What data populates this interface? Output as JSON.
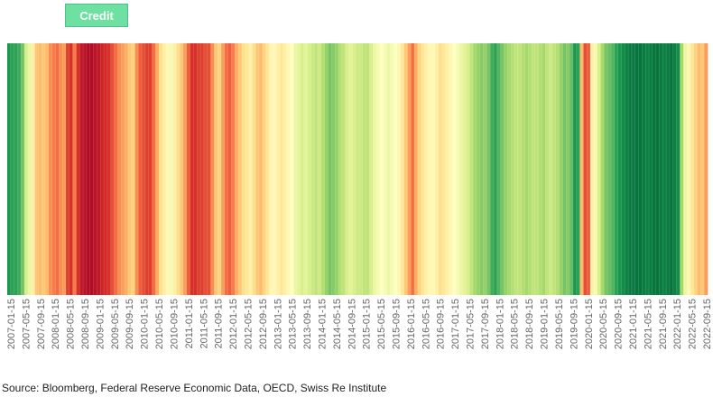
{
  "legend": {
    "label": "Credit",
    "color": "#6ee0a2"
  },
  "source": "Source: Bloomberg, Federal Reserve Economic Data, OECD, Swiss Re Institute",
  "chart_data": {
    "type": "heatmap",
    "title": "",
    "series_name": "Credit",
    "x_labels": [
      "2007-01-15",
      "2007-05-15",
      "2007-09-15",
      "2008-01-15",
      "2008-05-15",
      "2008-09-15",
      "2009-01-15",
      "2009-05-15",
      "2009-09-15",
      "2010-01-15",
      "2010-05-15",
      "2010-09-15",
      "2011-01-15",
      "2011-05-15",
      "2011-09-15",
      "2012-01-15",
      "2012-05-15",
      "2012-09-15",
      "2013-01-15",
      "2013-05-15",
      "2013-09-15",
      "2014-01-15",
      "2014-05-15",
      "2014-09-15",
      "2015-01-15",
      "2015-05-15",
      "2015-09-15",
      "2016-01-15",
      "2016-05-15",
      "2016-09-15",
      "2017-01-15",
      "2017-05-15",
      "2017-09-15",
      "2018-01-15",
      "2018-05-15",
      "2018-09-15",
      "2019-01-15",
      "2019-05-15",
      "2019-09-15",
      "2020-01-15",
      "2020-05-15",
      "2020-09-15",
      "2021-01-15",
      "2021-05-15",
      "2021-09-15",
      "2022-01-15",
      "2022-05-15",
      "2022-09-15"
    ],
    "x_start": "2007-01-15",
    "x_end": "2022-12-15",
    "value_scale": "diverging: -1 = red (stress), 0 = yellow, +1 = green (favorable)",
    "colorscale": [
      "#a50026",
      "#d73027",
      "#f46d43",
      "#fdae61",
      "#fee08b",
      "#ffffbf",
      "#d9ef8b",
      "#a6d96a",
      "#66bd63",
      "#1a9850",
      "#006837"
    ],
    "values": [
      0.8,
      0.75,
      0.75,
      0.7,
      0.55,
      0.2,
      0.1,
      -0.1,
      -0.3,
      -0.35,
      -0.3,
      -0.35,
      -0.5,
      -0.55,
      -0.6,
      -0.5,
      -0.45,
      -0.75,
      -0.8,
      -0.55,
      -0.8,
      -0.9,
      -0.92,
      -0.95,
      -0.95,
      -0.92,
      -0.9,
      -0.85,
      -0.82,
      -0.8,
      -0.7,
      -0.6,
      -0.5,
      -0.45,
      -0.4,
      -0.3,
      -0.25,
      -0.5,
      -0.65,
      -0.7,
      -0.75,
      -0.75,
      -0.6,
      -0.4,
      -0.2,
      -0.1,
      -0.05,
      0.05,
      -0.1,
      -0.2,
      -0.3,
      -0.45,
      -0.65,
      -0.8,
      -0.8,
      -0.75,
      -0.75,
      -0.7,
      -0.7,
      -0.5,
      -0.3,
      -0.25,
      -0.45,
      -0.6,
      -0.65,
      -0.55,
      -0.4,
      -0.3,
      -0.2,
      -0.15,
      -0.1,
      -0.2,
      -0.3,
      -0.35,
      -0.25,
      -0.15,
      -0.05,
      -0.05,
      -0.1,
      -0.15,
      -0.1,
      -0.05,
      0.0,
      0.1,
      0.15,
      0.2,
      0.15,
      0.2,
      0.25,
      0.3,
      0.25,
      0.35,
      0.45,
      0.55,
      0.5,
      0.45,
      0.35,
      0.3,
      0.2,
      0.15,
      0.2,
      0.25,
      0.25,
      0.3,
      0.3,
      0.2,
      0.1,
      0.05,
      0.0,
      0.05,
      0.1,
      0.05,
      0.0,
      -0.05,
      -0.15,
      -0.3,
      -0.45,
      -0.6,
      -0.4,
      -0.25,
      -0.15,
      -0.1,
      -0.05,
      -0.05,
      -0.1,
      -0.2,
      -0.15,
      -0.1,
      -0.05,
      0.0,
      0.05,
      0.1,
      0.15,
      0.2,
      0.3,
      0.4,
      0.45,
      0.5,
      0.45,
      0.55,
      0.7,
      0.75,
      0.65,
      0.55,
      0.45,
      0.4,
      0.35,
      0.3,
      0.3,
      0.35,
      0.4,
      0.35,
      0.3,
      0.3,
      0.35,
      0.4,
      0.3,
      0.25,
      0.3,
      0.35,
      0.45,
      0.55,
      0.5,
      0.6,
      0.8,
      0.75,
      -0.35,
      -0.7,
      -0.65,
      -0.1,
      0.05,
      0.2,
      0.4,
      0.55,
      0.6,
      0.65,
      0.75,
      0.8,
      0.85,
      0.9,
      0.92,
      0.92,
      0.95,
      0.95,
      0.92,
      0.9,
      0.92,
      0.95,
      0.95,
      0.92,
      0.9,
      0.92,
      0.95,
      0.9,
      0.85,
      0.4,
      0.1,
      -0.05,
      -0.15,
      -0.25,
      -0.35,
      -0.3,
      -0.45
    ]
  }
}
